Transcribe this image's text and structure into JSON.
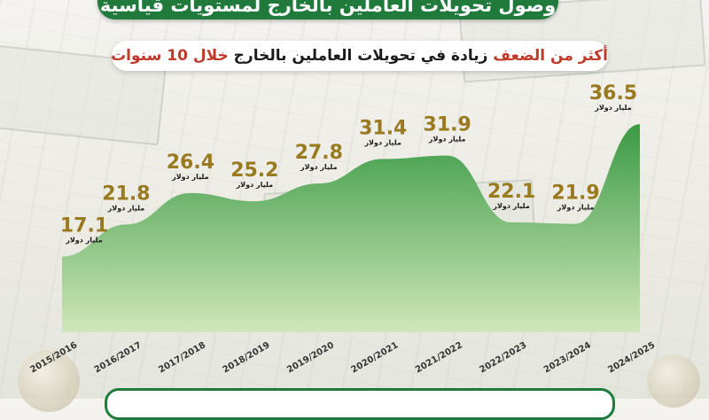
{
  "header": {
    "banner": "وصول تحويلات العاملين بالخارج لمستويات قياسية",
    "subtitle_part1": "أكثر من الضعف",
    "subtitle_part2": " زيادة في تحويلات العاملين بالخارج ",
    "subtitle_part3": "خلال 10 سنوات"
  },
  "colors": {
    "area_top": "#3a9a45",
    "area_bottom": "#cfe6b9",
    "value_text": "#9a7a1e",
    "highlight": "#c0392b",
    "banner": "#1f7a3b"
  },
  "chart_data": {
    "type": "area",
    "title": "أكثر من الضعف زيادة في تحويلات العاملين بالخارج خلال 10 سنوات",
    "unit": "مليار دولار",
    "categories": [
      "2015/2016",
      "2016/2017",
      "2017/2018",
      "2018/2019",
      "2019/2020",
      "2020/2021",
      "2021/2022",
      "2022/2023",
      "2023/2024",
      "2024/2025"
    ],
    "values": [
      17.1,
      21.8,
      26.4,
      25.2,
      27.8,
      31.4,
      31.9,
      22.1,
      21.9,
      36.5
    ],
    "value_labels": [
      "17.1",
      "21.8",
      "26.4",
      "25.2",
      "27.8",
      "31.4",
      "31.9",
      "22.1",
      "21.9",
      "36.5"
    ],
    "grid": false,
    "legend": "none"
  }
}
